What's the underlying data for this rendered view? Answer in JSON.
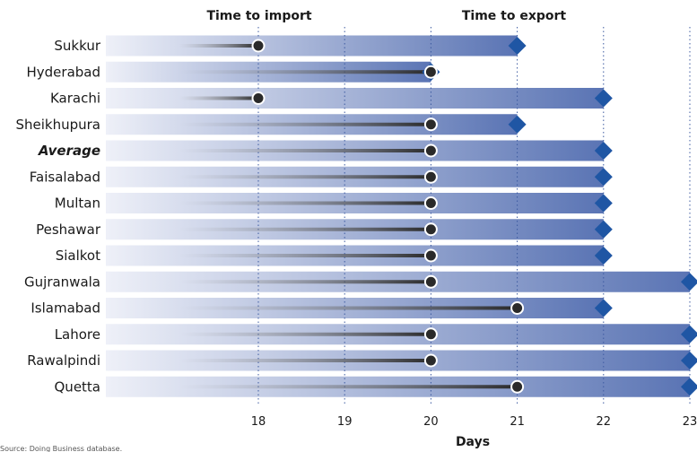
{
  "chart_data": {
    "type": "dumbbell",
    "headers": {
      "import": "Time to import",
      "export": "Time to export"
    },
    "xlabel": "Days",
    "xlim": [
      17,
      23
    ],
    "xticks": [
      18,
      19,
      20,
      21,
      22,
      23
    ],
    "grid": "vertical-dotted",
    "categories": [
      "Sukkur",
      "Hyderabad",
      "Karachi",
      "Sheikhupura",
      "Average",
      "Faisalabad",
      "Multan",
      "Peshawar",
      "Sialkot",
      "Gujranwala",
      "Islamabad",
      "Lahore",
      "Rawalpindi",
      "Quetta"
    ],
    "highlight": "Average",
    "series": [
      {
        "name": "Time to import",
        "values": [
          18,
          20,
          18,
          20,
          20,
          20,
          20,
          20,
          20,
          20,
          21,
          20,
          20,
          21
        ]
      },
      {
        "name": "Time to export",
        "values": [
          21,
          20,
          22,
          21,
          22,
          22,
          22,
          22,
          22,
          23,
          22,
          23,
          23,
          23
        ]
      }
    ],
    "source": "Source: Doing Business database."
  },
  "colors": {
    "bar_start": "#eef0f8",
    "bar_end": "#5a74b4",
    "diamond": "#1f56a4",
    "dot_fill": "#2a2a2a",
    "dot_stroke": "#ffffff",
    "grid": "#3c5aa0"
  }
}
